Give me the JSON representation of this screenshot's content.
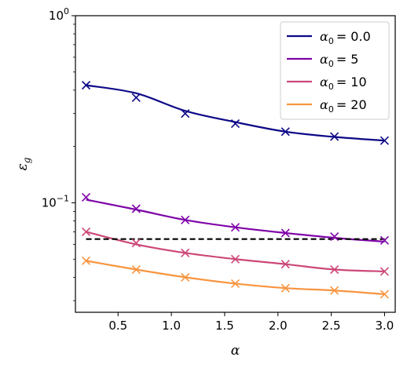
{
  "chart_data": {
    "type": "line",
    "xlabel": "α",
    "ylabel": "ε",
    "ylabel_sub": "g",
    "yscale": "log",
    "xlim": [
      0.1,
      3.1
    ],
    "ylim": [
      0.026,
      1.0
    ],
    "x_ticks": [
      0.5,
      1.0,
      1.5,
      2.0,
      2.5,
      3.0
    ],
    "x_tick_labels": [
      "0.5",
      "1.0",
      "1.5",
      "2.0",
      "2.5",
      "3.0"
    ],
    "y_ticks": [
      0.1,
      1.0
    ],
    "y_tick_labels": [
      {
        "base": "10",
        "exp": "−1"
      },
      {
        "base": "10",
        "exp": "0"
      }
    ],
    "grid": false,
    "legend_position": "top-right",
    "markers_x": [
      0.2,
      0.67,
      1.13,
      1.6,
      2.07,
      2.53,
      3.0
    ],
    "series": [
      {
        "name": "α₀ = 0.0",
        "legend_sym": "α",
        "legend_sub": "0",
        "legend_val": "= 0.0",
        "color": "#0d0887",
        "line_y": [
          0.425,
          0.385,
          0.31,
          0.27,
          0.24,
          0.225,
          0.215
        ],
        "marker_y": [
          0.425,
          0.365,
          0.3,
          0.265,
          0.24,
          0.226,
          0.215
        ]
      },
      {
        "name": "α₀ = 5",
        "legend_sym": "α",
        "legend_sub": "0",
        "legend_val": "= 5",
        "color": "#7e03a8",
        "line_y": [
          0.104,
          0.092,
          0.081,
          0.074,
          0.069,
          0.065,
          0.062
        ],
        "marker_y": [
          0.107,
          0.093,
          0.081,
          0.074,
          0.069,
          0.066,
          0.063
        ]
      },
      {
        "name": "α₀ = 10",
        "legend_sym": "α",
        "legend_sub": "0",
        "legend_val": "= 10",
        "color": "#cc4778",
        "line_y": [
          0.07,
          0.06,
          0.054,
          0.05,
          0.047,
          0.044,
          0.043
        ],
        "marker_y": [
          0.07,
          0.061,
          0.054,
          0.05,
          0.047,
          0.044,
          0.043
        ]
      },
      {
        "name": "α₀ = 20",
        "legend_sym": "α",
        "legend_sub": "0",
        "legend_val": "= 20",
        "color": "#f89540",
        "line_y": [
          0.049,
          0.044,
          0.04,
          0.037,
          0.035,
          0.034,
          0.0325
        ],
        "marker_y": [
          0.049,
          0.044,
          0.04,
          0.037,
          0.035,
          0.034,
          0.0325
        ]
      }
    ],
    "reference_line": {
      "y": 0.064,
      "x_range": [
        0.2,
        3.0
      ],
      "style": "dashed",
      "color": "#000000"
    }
  }
}
